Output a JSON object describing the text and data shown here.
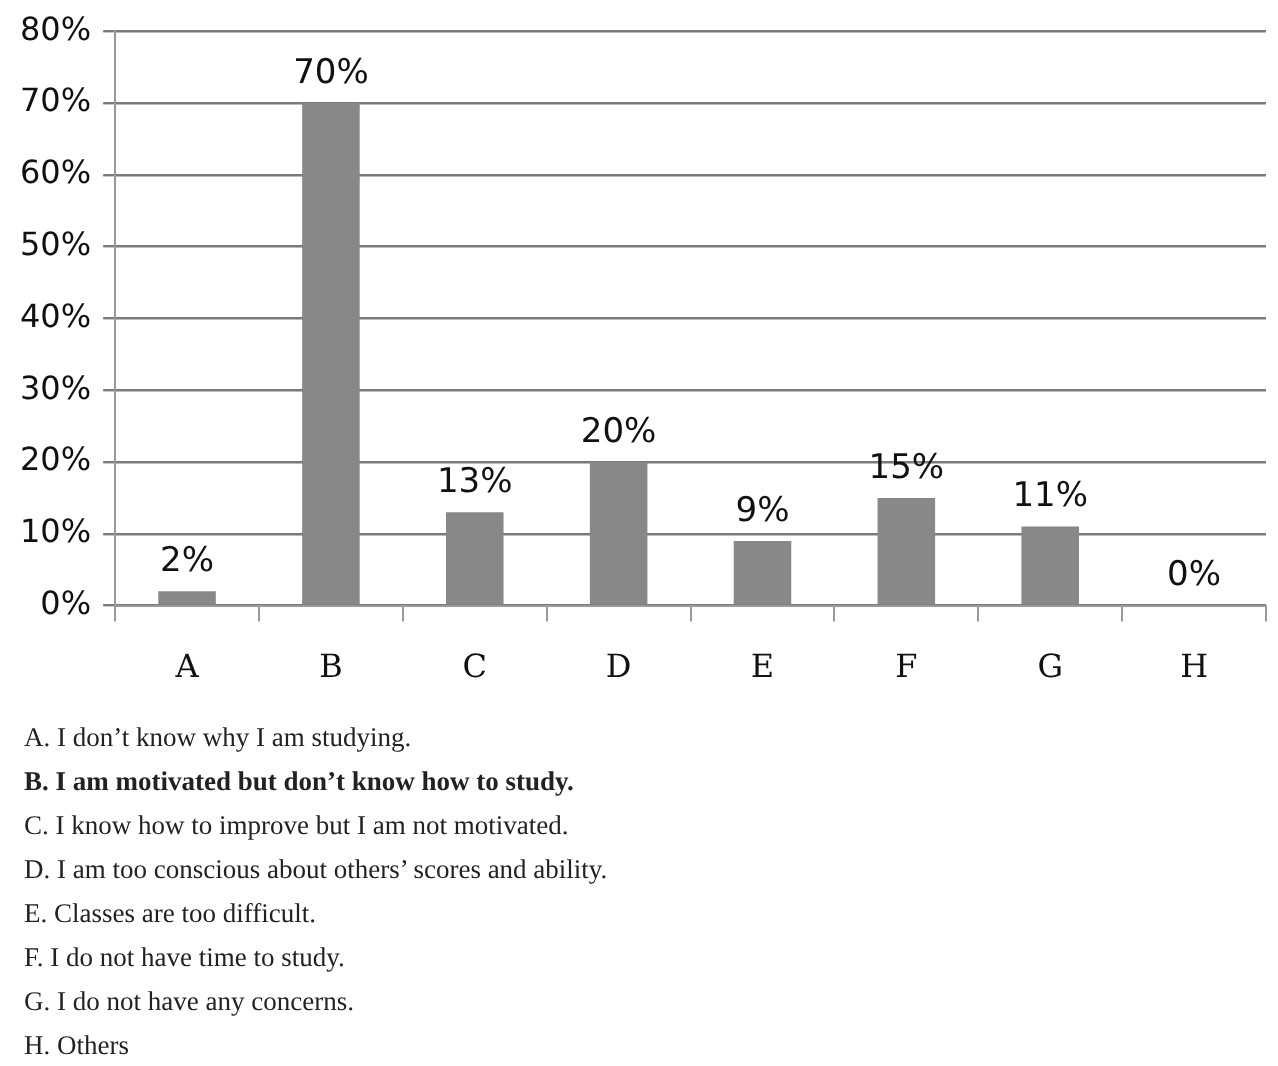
{
  "chart_data": {
    "type": "bar",
    "categories": [
      "A",
      "B",
      "C",
      "D",
      "E",
      "F",
      "G",
      "H"
    ],
    "values": [
      2,
      70,
      13,
      20,
      9,
      15,
      11,
      0
    ],
    "value_labels": [
      "2%",
      "70%",
      "13%",
      "20%",
      "9%",
      "15%",
      "11%",
      "0%"
    ],
    "color": "#888888",
    "ylim": [
      0,
      80
    ],
    "yticks": [
      {
        "value": 0,
        "label": "0%"
      },
      {
        "value": 10,
        "label": "10%"
      },
      {
        "value": 20,
        "label": "20%"
      },
      {
        "value": 30,
        "label": "30%"
      },
      {
        "value": 40,
        "label": "40%"
      },
      {
        "value": 50,
        "label": "50%"
      },
      {
        "value": 60,
        "label": "60%"
      },
      {
        "value": 70,
        "label": "70%"
      },
      {
        "value": 80,
        "label": "80%"
      }
    ],
    "grid": "y",
    "annotations": [
      "A. I don’t know why I am studying.",
      "B. I am motivated but don’t know how to study.",
      "C. I know how to improve but I am not motivated.",
      "D. I am too conscious about others’ scores and ability.",
      "E. Classes are too difficult.",
      "F. I do not have time to study.",
      "G. I do not have any concerns.",
      "H. Others"
    ]
  }
}
